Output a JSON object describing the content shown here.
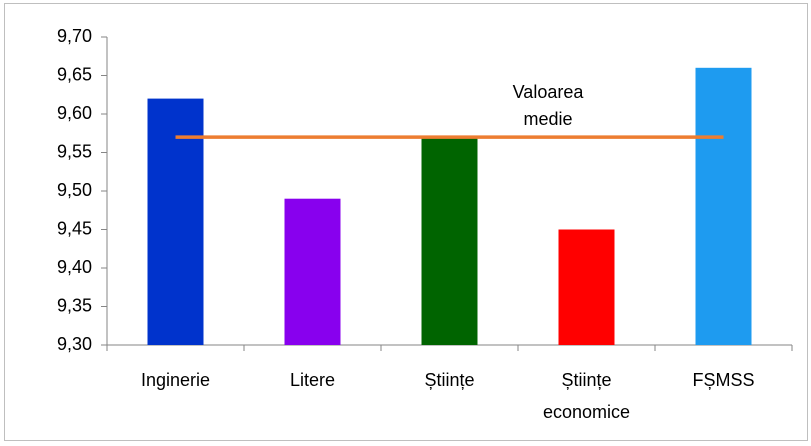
{
  "chart_data": {
    "type": "bar",
    "categories": [
      "Inginerie",
      "Litere",
      "Științe",
      "Științe economice",
      "FȘMSS"
    ],
    "values": [
      9.62,
      9.49,
      9.57,
      9.45,
      9.66
    ],
    "colors": [
      "#0033cc",
      "#8800ee",
      "#006400",
      "#ff0000",
      "#1e9bf0"
    ],
    "line": {
      "label": "Valoarea medie",
      "values": [
        9.57,
        9.57,
        9.57,
        9.57,
        9.57
      ],
      "color": "#ed7d31"
    },
    "ylim": [
      9.3,
      9.7
    ],
    "yticks": [
      {
        "value": 9.3,
        "label": "9,30"
      },
      {
        "value": 9.35,
        "label": "9,35"
      },
      {
        "value": 9.4,
        "label": "9,40"
      },
      {
        "value": 9.45,
        "label": "9,45"
      },
      {
        "value": 9.5,
        "label": "9,50"
      },
      {
        "value": 9.55,
        "label": "9,55"
      },
      {
        "value": 9.6,
        "label": "9,60"
      },
      {
        "value": 9.65,
        "label": "9,65"
      },
      {
        "value": 9.7,
        "label": "9,70"
      }
    ]
  }
}
